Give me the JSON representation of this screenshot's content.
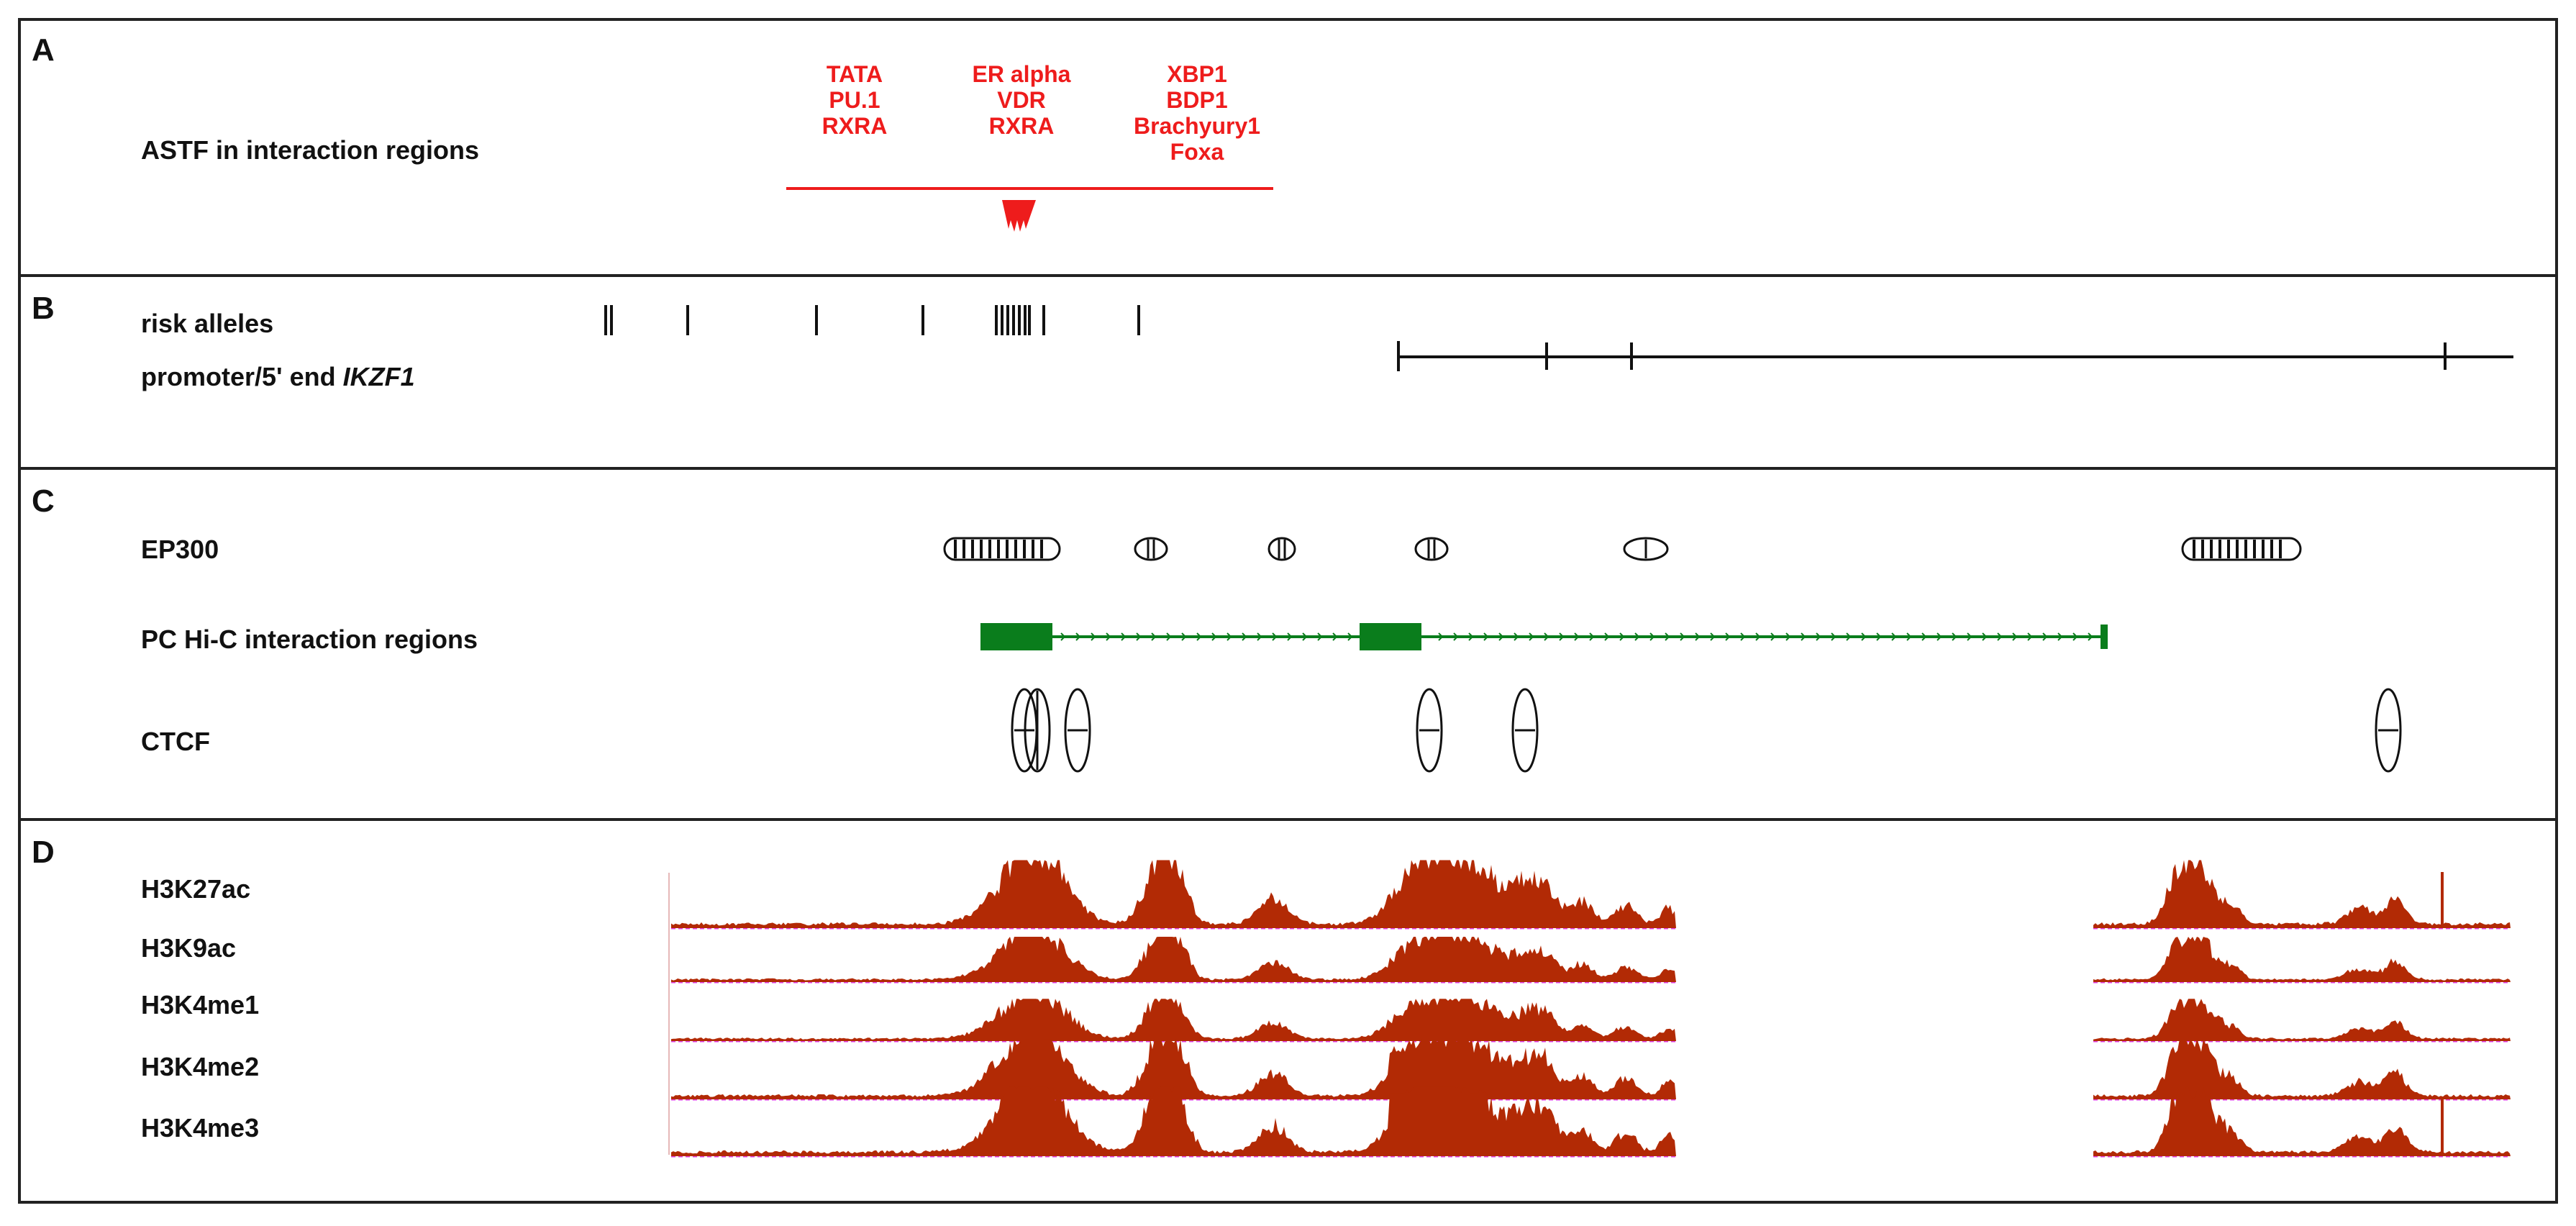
{
  "panels": [
    {
      "letter": "A",
      "tracks": [
        {
          "name": "astf",
          "label": "ASTF in interaction regions"
        }
      ]
    },
    {
      "letter": "B",
      "tracks": [
        {
          "name": "risk-alleles",
          "label": "risk alleles"
        },
        {
          "name": "promoter",
          "label_prefix": "promoter/5' end ",
          "label_gene": "IKZF1"
        }
      ]
    },
    {
      "letter": "C",
      "tracks": [
        {
          "name": "ep300",
          "label": "EP300"
        },
        {
          "name": "pchic",
          "label": "PC Hi-C interaction regions"
        },
        {
          "name": "ctcf",
          "label": "CTCF"
        }
      ]
    },
    {
      "letter": "D",
      "tracks": [
        {
          "name": "h3k27ac",
          "label": "H3K27ac"
        },
        {
          "name": "h3k9ac",
          "label": "H3K9ac"
        },
        {
          "name": "h3k4me1",
          "label": "H3K4me1"
        },
        {
          "name": "h3k4me2",
          "label": "H3K4me2"
        },
        {
          "name": "h3k4me3",
          "label": "H3K4me3"
        }
      ]
    }
  ],
  "tf_groups": [
    {
      "name": "left",
      "lines": [
        "TATA",
        "PU.1",
        "RXRA"
      ]
    },
    {
      "name": "middle",
      "lines": [
        "ER alpha",
        "VDR",
        "RXRA"
      ]
    },
    {
      "name": "right",
      "lines": [
        "XBP1",
        "BDP1",
        "Brachyury1",
        "Foxa"
      ]
    }
  ],
  "colors": {
    "tf_text": "#ee1c1c",
    "signal": "#b22a05",
    "signal_baseline": "#e040e0",
    "interaction": "#0a7d1c",
    "border": "#222222"
  }
}
